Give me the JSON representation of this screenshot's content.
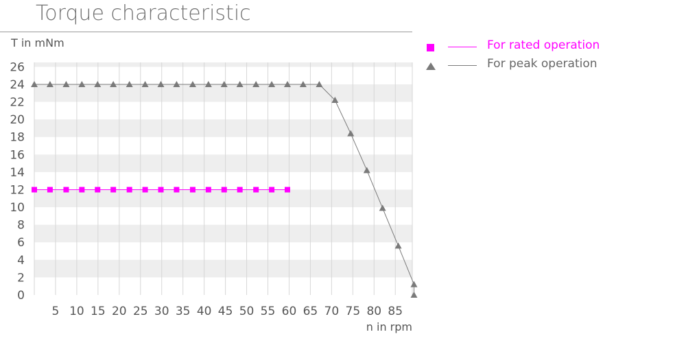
{
  "chart_data": {
    "type": "line",
    "title": "Torque characteristic",
    "ylabel": "T in mNm",
    "xlabel": "n in rpm",
    "xlim": [
      0,
      89
    ],
    "ylim": [
      0,
      26.5
    ],
    "x_ticks": [
      5,
      10,
      15,
      20,
      25,
      30,
      35,
      40,
      45,
      50,
      55,
      60,
      65,
      70,
      75,
      80,
      85
    ],
    "y_ticks": [
      0,
      2,
      4,
      6,
      8,
      10,
      12,
      14,
      16,
      18,
      20,
      22,
      24,
      26
    ],
    "grid": "horizontal bands",
    "legend_position": "right",
    "series": [
      {
        "name": "For rated operation",
        "marker": "square",
        "color": "#ff00ff",
        "x": [
          0,
          3.7,
          7.5,
          11.2,
          14.9,
          18.6,
          22.4,
          26.1,
          29.8,
          33.5,
          37.3,
          41,
          44.7,
          48.4,
          52.2,
          55.9,
          59.6
        ],
        "y": [
          12,
          12,
          12,
          12,
          12,
          12,
          12,
          12,
          12,
          12,
          12,
          12,
          12,
          12,
          12,
          12,
          12
        ]
      },
      {
        "name": "For peak operation",
        "marker": "triangle",
        "color": "#7a7a7a",
        "x": [
          0,
          3.7,
          7.5,
          11.2,
          14.9,
          18.6,
          22.4,
          26.1,
          29.8,
          33.5,
          37.3,
          41,
          44.7,
          48.4,
          52.2,
          55.9,
          59.6,
          63.3,
          67.1,
          70.8,
          74.5,
          78.3,
          82,
          85.7,
          89.4,
          89.4
        ],
        "y": [
          24,
          24,
          24,
          24,
          24,
          24,
          24,
          24,
          24,
          24,
          24,
          24,
          24,
          24,
          24,
          24,
          24,
          24,
          24,
          22.2,
          18.4,
          14.2,
          9.9,
          5.6,
          1.2,
          0
        ]
      }
    ]
  }
}
